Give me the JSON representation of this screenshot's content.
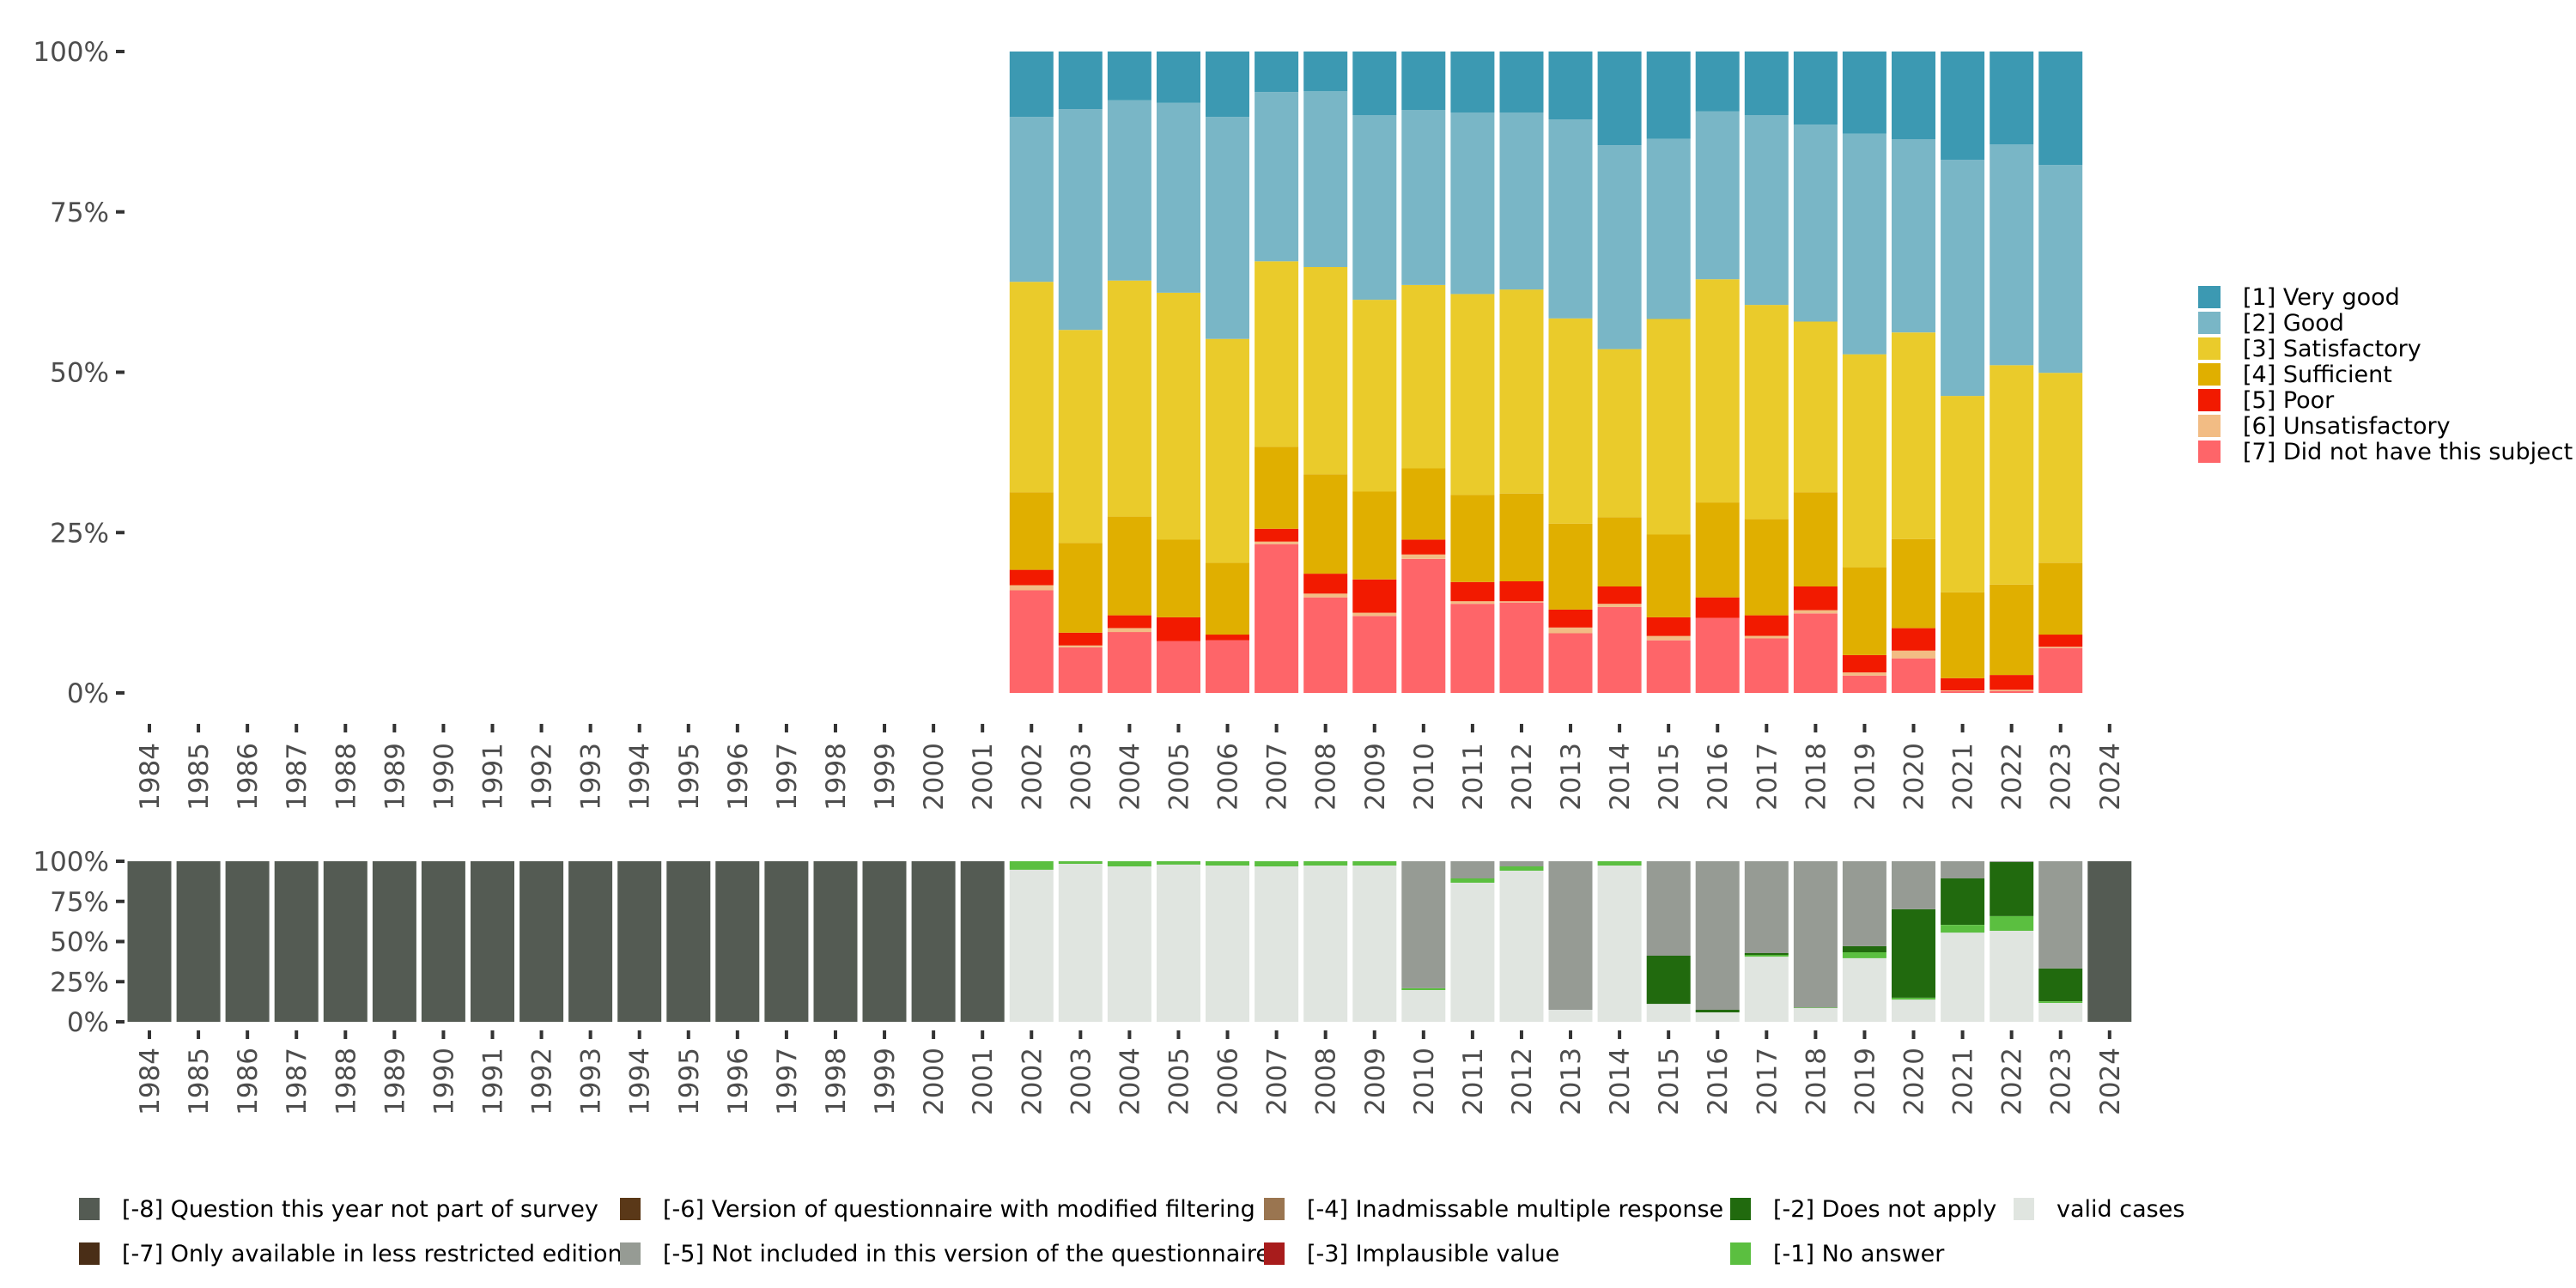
{
  "chart_data": [
    {
      "type": "bar",
      "stacked": true,
      "normalized": true,
      "title": "",
      "xlabel": "",
      "ylabel": "",
      "ylim": [
        0,
        100
      ],
      "y_ticks": [
        "0%",
        "25%",
        "50%",
        "75%",
        "100%"
      ],
      "grid": false,
      "legend_position": "right",
      "categories": [
        "1984",
        "1985",
        "1986",
        "1987",
        "1988",
        "1989",
        "1990",
        "1991",
        "1992",
        "1993",
        "1994",
        "1995",
        "1996",
        "1997",
        "1998",
        "1999",
        "2000",
        "2001",
        "2002",
        "2003",
        "2004",
        "2005",
        "2006",
        "2007",
        "2008",
        "2009",
        "2010",
        "2011",
        "2012",
        "2013",
        "2014",
        "2015",
        "2016",
        "2017",
        "2018",
        "2019",
        "2020",
        "2021",
        "2022",
        "2023",
        "2024"
      ],
      "series": [
        {
          "name": "[7] Did not have this subject",
          "color": "#fe6569",
          "values": [
            null,
            null,
            null,
            null,
            null,
            null,
            null,
            null,
            null,
            null,
            null,
            null,
            null,
            null,
            null,
            null,
            null,
            null,
            16.0,
            7.1,
            9.5,
            8.1,
            8.2,
            23.2,
            14.9,
            12.0,
            20.9,
            13.9,
            14.1,
            9.3,
            13.4,
            8.2,
            11.7,
            8.5,
            12.4,
            2.7,
            5.4,
            0.3,
            0.3,
            7.0,
            null
          ]
        },
        {
          "name": "[6] Unsatisfactory",
          "color": "#f2bc84",
          "values": [
            null,
            null,
            null,
            null,
            null,
            null,
            null,
            null,
            null,
            null,
            null,
            null,
            null,
            null,
            null,
            null,
            null,
            null,
            0.8,
            0.3,
            0.6,
            0.0,
            0.0,
            0.4,
            0.6,
            0.5,
            0.7,
            0.4,
            0.2,
            0.9,
            0.5,
            0.7,
            0.0,
            0.4,
            0.5,
            0.5,
            1.2,
            0.1,
            0.2,
            0.2,
            null
          ]
        },
        {
          "name": "[5] Poor",
          "color": "#f21a00",
          "values": [
            null,
            null,
            null,
            null,
            null,
            null,
            null,
            null,
            null,
            null,
            null,
            null,
            null,
            null,
            null,
            null,
            null,
            null,
            2.4,
            2.0,
            2.0,
            3.7,
            0.9,
            2.0,
            3.1,
            5.2,
            2.3,
            3.0,
            3.1,
            2.8,
            2.7,
            2.9,
            3.2,
            3.2,
            3.7,
            2.7,
            3.5,
            1.9,
            2.3,
            1.9,
            null
          ]
        },
        {
          "name": "[4] Sufficient",
          "color": "#e0af00",
          "values": [
            null,
            null,
            null,
            null,
            null,
            null,
            null,
            null,
            null,
            null,
            null,
            null,
            null,
            null,
            null,
            null,
            null,
            null,
            12.1,
            14.0,
            15.4,
            12.1,
            11.2,
            12.8,
            15.5,
            13.7,
            11.1,
            13.6,
            13.7,
            13.4,
            10.8,
            12.9,
            14.8,
            15.0,
            14.7,
            13.7,
            13.9,
            13.4,
            14.1,
            11.2,
            null
          ]
        },
        {
          "name": "[3] Satisfactory",
          "color": "#eacb2b",
          "values": [
            null,
            null,
            null,
            null,
            null,
            null,
            null,
            null,
            null,
            null,
            null,
            null,
            null,
            null,
            null,
            null,
            null,
            null,
            32.8,
            33.2,
            36.8,
            38.5,
            34.9,
            28.9,
            32.3,
            29.9,
            28.6,
            31.3,
            31.8,
            32.0,
            26.2,
            33.6,
            34.8,
            33.4,
            26.6,
            33.2,
            32.2,
            30.6,
            34.2,
            29.6,
            null
          ]
        },
        {
          "name": "[2] Good",
          "color": "#79b6c6",
          "values": [
            null,
            null,
            null,
            null,
            null,
            null,
            null,
            null,
            null,
            null,
            null,
            null,
            null,
            null,
            null,
            null,
            null,
            null,
            25.7,
            34.4,
            28.1,
            29.6,
            34.6,
            26.4,
            27.4,
            28.8,
            27.3,
            28.3,
            27.6,
            31.0,
            31.8,
            28.1,
            26.2,
            29.6,
            30.7,
            34.4,
            30.1,
            36.8,
            34.4,
            32.4,
            null
          ]
        },
        {
          "name": "[1] Very good",
          "color": "#3c99b2",
          "values": [
            null,
            null,
            null,
            null,
            null,
            null,
            null,
            null,
            null,
            null,
            null,
            null,
            null,
            null,
            null,
            null,
            null,
            null,
            10.2,
            9.0,
            7.6,
            8.0,
            10.2,
            6.3,
            6.2,
            9.9,
            9.1,
            9.5,
            9.5,
            10.6,
            14.6,
            13.6,
            9.3,
            9.9,
            11.4,
            12.8,
            13.7,
            16.9,
            14.5,
            17.7,
            null
          ]
        }
      ]
    },
    {
      "type": "bar",
      "stacked": true,
      "normalized": true,
      "title": "",
      "xlabel": "",
      "ylabel": "",
      "ylim": [
        0,
        100
      ],
      "y_ticks": [
        "0%",
        "25%",
        "50%",
        "75%",
        "100%"
      ],
      "grid": false,
      "legend_position": "bottom",
      "categories": [
        "1984",
        "1985",
        "1986",
        "1987",
        "1988",
        "1989",
        "1990",
        "1991",
        "1992",
        "1993",
        "1994",
        "1995",
        "1996",
        "1997",
        "1998",
        "1999",
        "2000",
        "2001",
        "2002",
        "2003",
        "2004",
        "2005",
        "2006",
        "2007",
        "2008",
        "2009",
        "2010",
        "2011",
        "2012",
        "2013",
        "2014",
        "2015",
        "2016",
        "2017",
        "2018",
        "2019",
        "2020",
        "2021",
        "2022",
        "2023",
        "2024"
      ],
      "series": [
        {
          "name": "valid cases",
          "color": "#e0e5e0",
          "values": [
            0,
            0,
            0,
            0,
            0,
            0,
            0,
            0,
            0,
            0,
            0,
            0,
            0,
            0,
            0,
            0,
            0,
            0,
            94.7,
            98.4,
            96.8,
            97.9,
            97.3,
            96.8,
            97.3,
            97.3,
            19.8,
            86.6,
            94.1,
            7.5,
            97.3,
            11.2,
            5.9,
            40.6,
            8.6,
            39.6,
            13.9,
            55.6,
            56.7,
            11.8,
            0
          ]
        },
        {
          "name": "[-1] No answer",
          "color": "#5bbf40",
          "values": [
            0,
            0,
            0,
            0,
            0,
            0,
            0,
            0,
            0,
            0,
            0,
            0,
            0,
            0,
            0,
            0,
            0,
            0,
            5.3,
            1.6,
            3.2,
            2.1,
            2.7,
            3.2,
            2.7,
            2.7,
            1.1,
            2.7,
            2.7,
            0,
            2.7,
            0,
            0,
            1.1,
            0.3,
            3.7,
            1.1,
            4.8,
            9.1,
            1.0,
            0
          ]
        },
        {
          "name": "[-2] Does not apply",
          "color": "#216a0e",
          "values": [
            0,
            0,
            0,
            0,
            0,
            0,
            0,
            0,
            0,
            0,
            0,
            0,
            0,
            0,
            0,
            0,
            0,
            0,
            0,
            0,
            0,
            0,
            0,
            0,
            0,
            0,
            0,
            0,
            0,
            0,
            0,
            30.0,
            1.6,
            1.1,
            0,
            3.8,
            55.1,
            28.9,
            33.7,
            20.4,
            0
          ]
        },
        {
          "name": "[-3] Implausible value",
          "color": "#a81c1c",
          "values": [
            0,
            0,
            0,
            0,
            0,
            0,
            0,
            0,
            0,
            0,
            0,
            0,
            0,
            0,
            0,
            0,
            0,
            0,
            0,
            0,
            0,
            0,
            0,
            0,
            0,
            0,
            0,
            0,
            0,
            0,
            0,
            0,
            0,
            0,
            0,
            0,
            0,
            0,
            0,
            0,
            0
          ]
        },
        {
          "name": "[-4] Inadmissable multiple response",
          "color": "#9a7550",
          "values": [
            0,
            0,
            0,
            0,
            0,
            0,
            0,
            0,
            0,
            0,
            0,
            0,
            0,
            0,
            0,
            0,
            0,
            0,
            0,
            0,
            0,
            0,
            0,
            0,
            0,
            0,
            0,
            0,
            0,
            0,
            0,
            0,
            0,
            0,
            0,
            0,
            0,
            0,
            0,
            0,
            0
          ]
        },
        {
          "name": "[-5] Not included in this version of the questionnaire",
          "color": "#969b94",
          "values": [
            0,
            0,
            0,
            0,
            0,
            0,
            0,
            0,
            0,
            0,
            0,
            0,
            0,
            0,
            0,
            0,
            0,
            0,
            0,
            0,
            0,
            0,
            0,
            0,
            0,
            0,
            79.1,
            10.7,
            3.2,
            92.5,
            0,
            58.8,
            92.5,
            57.2,
            91.1,
            52.9,
            29.9,
            10.7,
            0.5,
            66.8,
            0
          ]
        },
        {
          "name": "[-6] Version of questionnaire with modified filtering",
          "color": "#5a3818",
          "values": [
            0,
            0,
            0,
            0,
            0,
            0,
            0,
            0,
            0,
            0,
            0,
            0,
            0,
            0,
            0,
            0,
            0,
            0,
            0,
            0,
            0,
            0,
            0,
            0,
            0,
            0,
            0,
            0,
            0,
            0,
            0,
            0,
            0,
            0,
            0,
            0,
            0,
            0,
            0,
            0,
            0
          ]
        },
        {
          "name": "[-7] Only available in less restricted edition",
          "color": "#4a2e17",
          "values": [
            0,
            0,
            0,
            0,
            0,
            0,
            0,
            0,
            0,
            0,
            0,
            0,
            0,
            0,
            0,
            0,
            0,
            0,
            0,
            0,
            0,
            0,
            0,
            0,
            0,
            0,
            0,
            0,
            0,
            0,
            0,
            0,
            0,
            0,
            0,
            0,
            0,
            0,
            0,
            0,
            0
          ]
        },
        {
          "name": "[-8] Question this year not part of survey",
          "color": "#545b53",
          "values": [
            100,
            100,
            100,
            100,
            100,
            100,
            100,
            100,
            100,
            100,
            100,
            100,
            100,
            100,
            100,
            100,
            100,
            100,
            0,
            0,
            0,
            0,
            0,
            0,
            0,
            0,
            0,
            0,
            0,
            0,
            0,
            0,
            0,
            0,
            0,
            0,
            0,
            0,
            0,
            0,
            100
          ]
        }
      ]
    }
  ],
  "legend_top": [
    {
      "label": "[1] Very good",
      "color": "#3c99b2"
    },
    {
      "label": "[2] Good",
      "color": "#79b6c6"
    },
    {
      "label": "[3] Satisfactory",
      "color": "#eacb2b"
    },
    {
      "label": "[4] Sufficient",
      "color": "#e0af00"
    },
    {
      "label": "[5] Poor",
      "color": "#f21a00"
    },
    {
      "label": "[6] Unsatisfactory",
      "color": "#f2bc84"
    },
    {
      "label": "[7] Did not have this subject",
      "color": "#fe6569"
    }
  ],
  "legend_bottom": [
    {
      "label": "[-8] Question this year not part of survey",
      "color": "#545b53"
    },
    {
      "label": "[-7] Only available in less restricted edition",
      "color": "#4a2e17"
    },
    {
      "label": "[-6] Version of questionnaire with modified filtering",
      "color": "#5a3818"
    },
    {
      "label": "[-5] Not included in this version of the questionnaire",
      "color": "#969b94"
    },
    {
      "label": "[-4] Inadmissable multiple response",
      "color": "#9a7550"
    },
    {
      "label": "[-3] Implausible value",
      "color": "#a81c1c"
    },
    {
      "label": "[-2] Does not apply",
      "color": "#216a0e"
    },
    {
      "label": "[-1] No answer",
      "color": "#5bbf40"
    },
    {
      "label": "valid cases",
      "color": "#e0e5e0"
    }
  ]
}
